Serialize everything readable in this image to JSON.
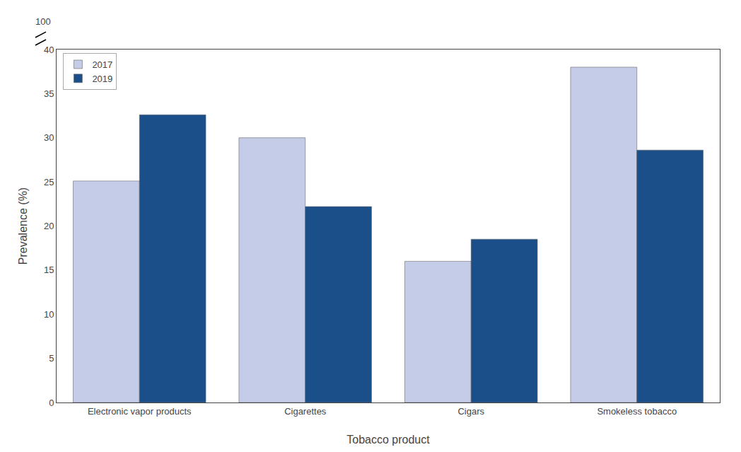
{
  "chart_data": {
    "type": "bar",
    "categories": [
      "Electronic vapor products",
      "Cigarettes",
      "Cigars",
      "Smokeless tobacco"
    ],
    "series": [
      {
        "name": "2017",
        "color": "#c5cce8",
        "values": [
          25.1,
          30.0,
          16.0,
          38.0
        ]
      },
      {
        "name": "2019",
        "color": "#1a4f8a",
        "values": [
          32.6,
          22.2,
          18.5,
          28.6
        ]
      }
    ],
    "xlabel": "Tobacco product",
    "ylabel": "Prevalence (%)",
    "ylim": [
      0,
      40
    ],
    "yticks": [
      0,
      5,
      10,
      15,
      20,
      25,
      30,
      35,
      40
    ],
    "grid": false,
    "legend": "upper left",
    "annotations": [
      "100"
    ]
  }
}
